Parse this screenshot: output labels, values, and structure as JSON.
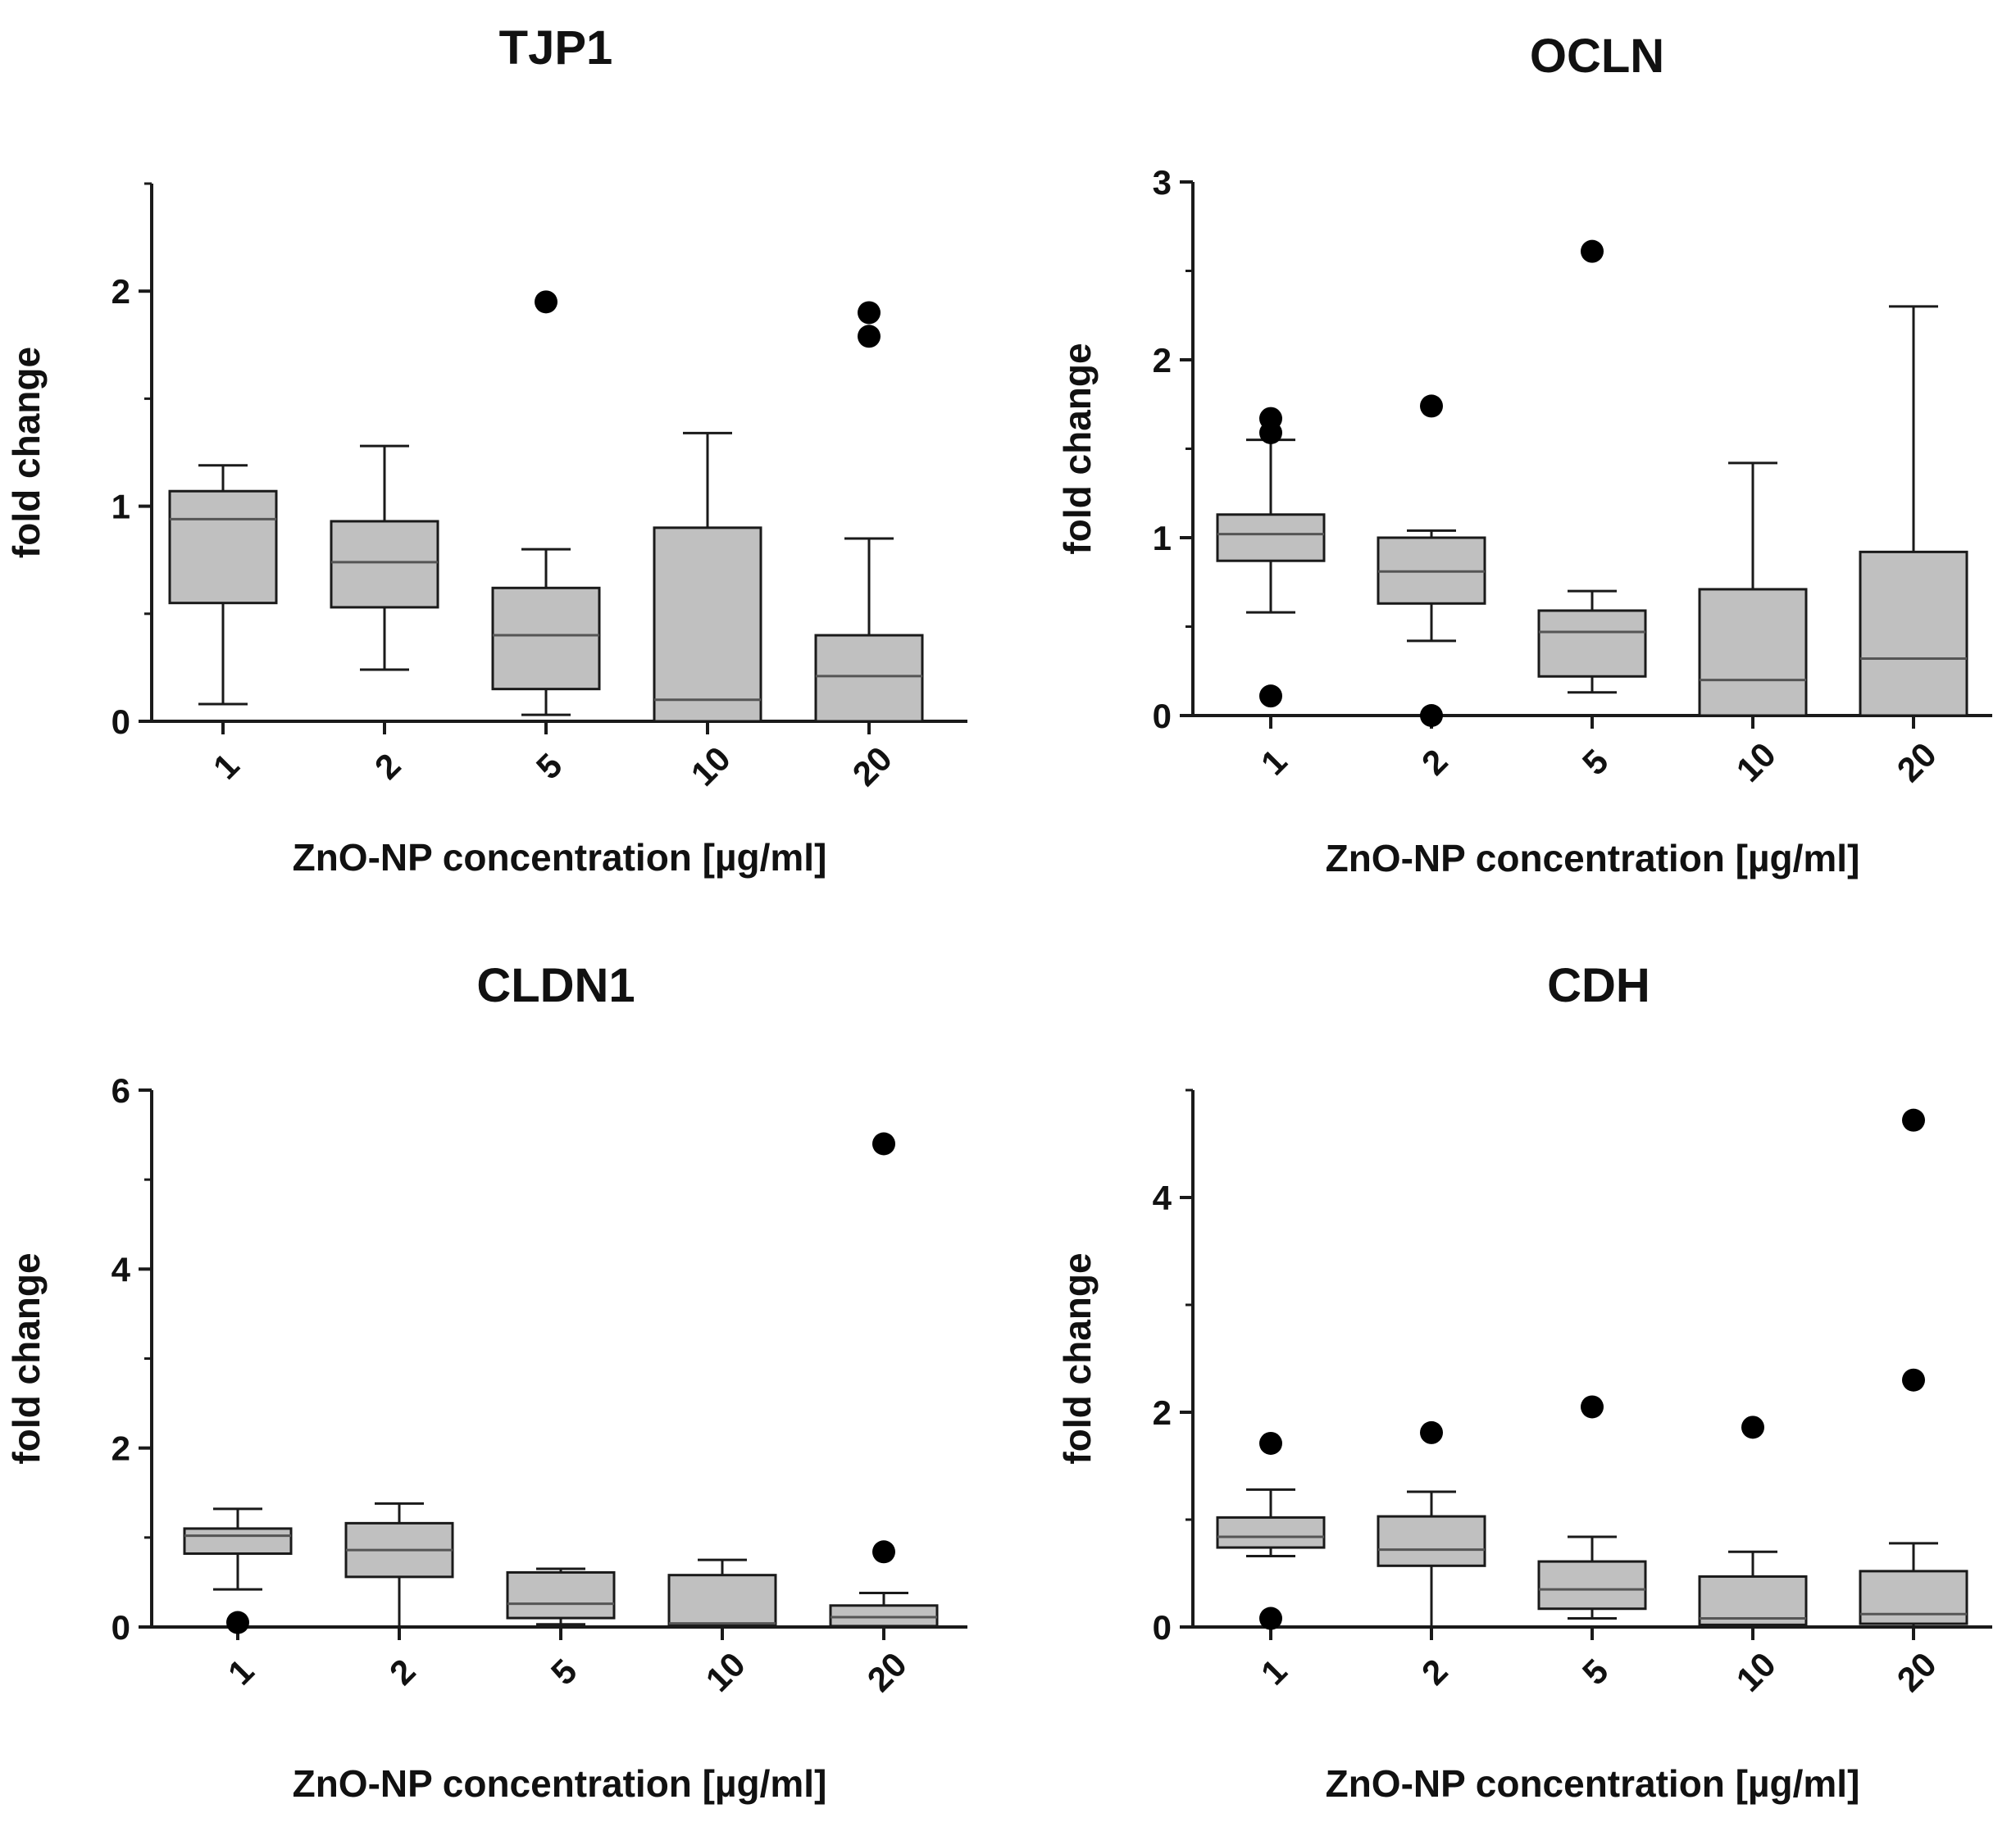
{
  "figure": {
    "colors": {
      "box_fill": "#c0c0c0",
      "line": "#1a1a1a",
      "outlier": "#000000",
      "background": "#ffffff"
    }
  },
  "chart_data": [
    {
      "type": "box",
      "title": "TJP1",
      "xlabel": "ZnO-NP concentration [µg/ml]",
      "ylabel": "fold change",
      "ylim": [
        0,
        2.5
      ],
      "yticks": [
        0,
        1,
        2
      ],
      "ytick_labels": [
        "0",
        "1",
        "2"
      ],
      "categories": [
        "1",
        "2",
        "5",
        "10",
        "20"
      ],
      "boxes": [
        {
          "category": "1",
          "whisker_low": 0.08,
          "q1": 0.55,
          "median": 0.94,
          "q3": 1.07,
          "whisker_high": 1.19,
          "outliers": []
        },
        {
          "category": "2",
          "whisker_low": 0.24,
          "q1": 0.53,
          "median": 0.74,
          "q3": 0.93,
          "whisker_high": 1.28,
          "outliers": []
        },
        {
          "category": "5",
          "whisker_low": 0.03,
          "q1": 0.15,
          "median": 0.4,
          "q3": 0.62,
          "whisker_high": 0.8,
          "outliers": [
            1.95
          ]
        },
        {
          "category": "10",
          "whisker_low": 0.0,
          "q1": 0.0,
          "median": 0.1,
          "q3": 0.9,
          "whisker_high": 1.34,
          "outliers": []
        },
        {
          "category": "20",
          "whisker_low": 0.0,
          "q1": 0.0,
          "median": 0.21,
          "q3": 0.4,
          "whisker_high": 0.85,
          "outliers": [
            1.9,
            1.79
          ]
        }
      ]
    },
    {
      "type": "box",
      "title": "OCLN",
      "xlabel": "ZnO-NP concentration [µg/ml]",
      "ylabel": "fold change",
      "ylim": [
        0,
        3
      ],
      "yticks": [
        0,
        1,
        2,
        3
      ],
      "ytick_labels": [
        "0",
        "1",
        "2",
        "3"
      ],
      "categories": [
        "1",
        "2",
        "5",
        "10",
        "20"
      ],
      "boxes": [
        {
          "category": "1",
          "whisker_low": 0.58,
          "q1": 0.87,
          "median": 1.02,
          "q3": 1.13,
          "whisker_high": 1.55,
          "outliers": [
            1.67,
            1.59,
            0.11
          ]
        },
        {
          "category": "2",
          "whisker_low": 0.42,
          "q1": 0.63,
          "median": 0.81,
          "q3": 1.0,
          "whisker_high": 1.04,
          "outliers": [
            1.74,
            0.0
          ]
        },
        {
          "category": "5",
          "whisker_low": 0.13,
          "q1": 0.22,
          "median": 0.47,
          "q3": 0.59,
          "whisker_high": 0.7,
          "outliers": [
            2.61
          ]
        },
        {
          "category": "10",
          "whisker_low": 0.0,
          "q1": 0.0,
          "median": 0.2,
          "q3": 0.71,
          "whisker_high": 1.42,
          "outliers": []
        },
        {
          "category": "20",
          "whisker_low": 0.0,
          "q1": 0.0,
          "median": 0.32,
          "q3": 0.92,
          "whisker_high": 2.3,
          "outliers": []
        }
      ]
    },
    {
      "type": "box",
      "title": "CLDN1",
      "xlabel": "ZnO-NP concentration [µg/ml]",
      "ylabel": "fold change",
      "ylim": [
        0,
        6
      ],
      "yticks": [
        0,
        2,
        4,
        6
      ],
      "ytick_labels": [
        "0",
        "2",
        "4",
        "6"
      ],
      "categories": [
        "1",
        "2",
        "5",
        "10",
        "20"
      ],
      "boxes": [
        {
          "category": "1",
          "whisker_low": 0.42,
          "q1": 0.82,
          "median": 1.02,
          "q3": 1.1,
          "whisker_high": 1.32,
          "outliers": [
            0.05
          ]
        },
        {
          "category": "2",
          "whisker_low": 0.0,
          "q1": 0.56,
          "median": 0.86,
          "q3": 1.16,
          "whisker_high": 1.38,
          "outliers": []
        },
        {
          "category": "5",
          "whisker_low": 0.03,
          "q1": 0.1,
          "median": 0.26,
          "q3": 0.61,
          "whisker_high": 0.65,
          "outliers": []
        },
        {
          "category": "10",
          "whisker_low": 0.0,
          "q1": 0.02,
          "median": 0.04,
          "q3": 0.58,
          "whisker_high": 0.75,
          "outliers": []
        },
        {
          "category": "20",
          "whisker_low": 0.0,
          "q1": 0.01,
          "median": 0.11,
          "q3": 0.24,
          "whisker_high": 0.38,
          "outliers": [
            5.4,
            0.84
          ]
        }
      ]
    },
    {
      "type": "box",
      "title": "CDH",
      "xlabel": "ZnO-NP concentration [µg/ml]",
      "ylabel": "fold change",
      "ylim": [
        0,
        5
      ],
      "yticks": [
        0,
        2,
        4
      ],
      "ytick_labels": [
        "0",
        "2",
        "4"
      ],
      "categories": [
        "1",
        "2",
        "5",
        "10",
        "20"
      ],
      "boxes": [
        {
          "category": "1",
          "whisker_low": 0.66,
          "q1": 0.74,
          "median": 0.84,
          "q3": 1.02,
          "whisker_high": 1.28,
          "outliers": [
            1.71,
            0.08
          ]
        },
        {
          "category": "2",
          "whisker_low": 0.0,
          "q1": 0.57,
          "median": 0.72,
          "q3": 1.03,
          "whisker_high": 1.26,
          "outliers": [
            1.81
          ]
        },
        {
          "category": "5",
          "whisker_low": 0.08,
          "q1": 0.17,
          "median": 0.35,
          "q3": 0.61,
          "whisker_high": 0.84,
          "outliers": [
            2.05
          ]
        },
        {
          "category": "10",
          "whisker_low": 0.0,
          "q1": 0.02,
          "median": 0.08,
          "q3": 0.47,
          "whisker_high": 0.7,
          "outliers": [
            1.86
          ]
        },
        {
          "category": "20",
          "whisker_low": 0.0,
          "q1": 0.03,
          "median": 0.12,
          "q3": 0.52,
          "whisker_high": 0.78,
          "outliers": [
            4.72,
            2.3
          ]
        }
      ]
    }
  ]
}
